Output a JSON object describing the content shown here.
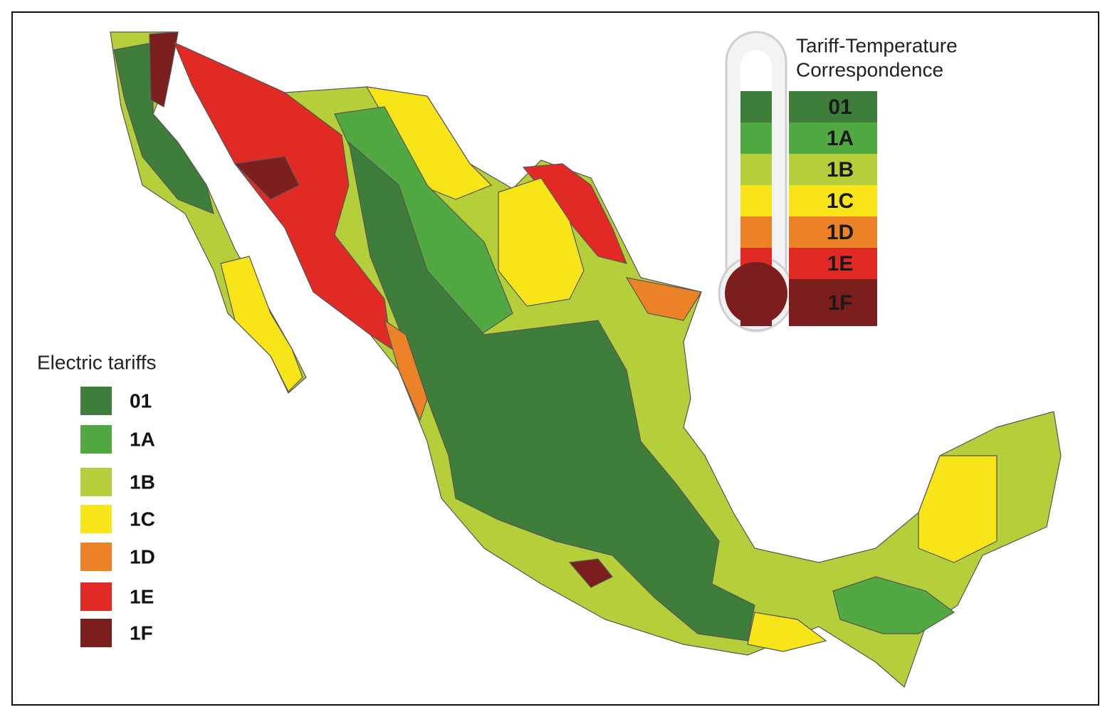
{
  "legend": {
    "title": "Electric tariffs",
    "items": [
      {
        "label": "01",
        "color": "#3f7d3a"
      },
      {
        "label": "1A",
        "color": "#52a841"
      },
      {
        "label": "1B",
        "color": "#b5cf3a"
      },
      {
        "label": "1C",
        "color": "#f7e51a"
      },
      {
        "label": "1D",
        "color": "#ec8227"
      },
      {
        "label": "1E",
        "color": "#e22a25"
      },
      {
        "label": "1F",
        "color": "#7d1e1e"
      }
    ]
  },
  "thermometer": {
    "title": [
      "Tariff-Temperature",
      "Correspondence"
    ],
    "bands": [
      "01",
      "1A",
      "1B",
      "1C",
      "1D",
      "1E",
      "1F"
    ]
  }
}
